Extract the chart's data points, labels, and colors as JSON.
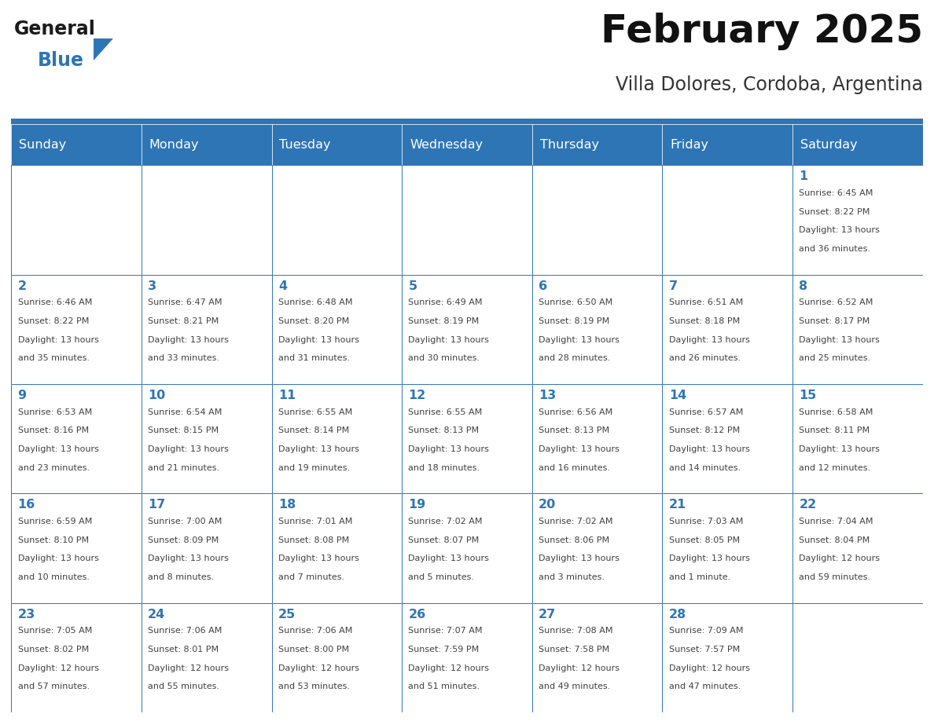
{
  "title": "February 2025",
  "subtitle": "Villa Dolores, Cordoba, Argentina",
  "header_bg": "#2E75B6",
  "header_text": "#FFFFFF",
  "cell_bg": "#FFFFFF",
  "cell_border": "#2E75B6",
  "day_number_color": "#2E75B6",
  "cell_text_color": "#404040",
  "separator_color": "#2E75B6",
  "days_of_week": [
    "Sunday",
    "Monday",
    "Tuesday",
    "Wednesday",
    "Thursday",
    "Friday",
    "Saturday"
  ],
  "logo_general_color": "#1a1a1a",
  "logo_blue_color": "#2E75B6",
  "calendar_data": [
    [
      null,
      null,
      null,
      null,
      null,
      null,
      {
        "day": "1",
        "sunrise": "6:45 AM",
        "sunset": "8:22 PM",
        "daylight": "13 hours",
        "daylight2": "and 36 minutes."
      }
    ],
    [
      {
        "day": "2",
        "sunrise": "6:46 AM",
        "sunset": "8:22 PM",
        "daylight": "13 hours",
        "daylight2": "and 35 minutes."
      },
      {
        "day": "3",
        "sunrise": "6:47 AM",
        "sunset": "8:21 PM",
        "daylight": "13 hours",
        "daylight2": "and 33 minutes."
      },
      {
        "day": "4",
        "sunrise": "6:48 AM",
        "sunset": "8:20 PM",
        "daylight": "13 hours",
        "daylight2": "and 31 minutes."
      },
      {
        "day": "5",
        "sunrise": "6:49 AM",
        "sunset": "8:19 PM",
        "daylight": "13 hours",
        "daylight2": "and 30 minutes."
      },
      {
        "day": "6",
        "sunrise": "6:50 AM",
        "sunset": "8:19 PM",
        "daylight": "13 hours",
        "daylight2": "and 28 minutes."
      },
      {
        "day": "7",
        "sunrise": "6:51 AM",
        "sunset": "8:18 PM",
        "daylight": "13 hours",
        "daylight2": "and 26 minutes."
      },
      {
        "day": "8",
        "sunrise": "6:52 AM",
        "sunset": "8:17 PM",
        "daylight": "13 hours",
        "daylight2": "and 25 minutes."
      }
    ],
    [
      {
        "day": "9",
        "sunrise": "6:53 AM",
        "sunset": "8:16 PM",
        "daylight": "13 hours",
        "daylight2": "and 23 minutes."
      },
      {
        "day": "10",
        "sunrise": "6:54 AM",
        "sunset": "8:15 PM",
        "daylight": "13 hours",
        "daylight2": "and 21 minutes."
      },
      {
        "day": "11",
        "sunrise": "6:55 AM",
        "sunset": "8:14 PM",
        "daylight": "13 hours",
        "daylight2": "and 19 minutes."
      },
      {
        "day": "12",
        "sunrise": "6:55 AM",
        "sunset": "8:13 PM",
        "daylight": "13 hours",
        "daylight2": "and 18 minutes."
      },
      {
        "day": "13",
        "sunrise": "6:56 AM",
        "sunset": "8:13 PM",
        "daylight": "13 hours",
        "daylight2": "and 16 minutes."
      },
      {
        "day": "14",
        "sunrise": "6:57 AM",
        "sunset": "8:12 PM",
        "daylight": "13 hours",
        "daylight2": "and 14 minutes."
      },
      {
        "day": "15",
        "sunrise": "6:58 AM",
        "sunset": "8:11 PM",
        "daylight": "13 hours",
        "daylight2": "and 12 minutes."
      }
    ],
    [
      {
        "day": "16",
        "sunrise": "6:59 AM",
        "sunset": "8:10 PM",
        "daylight": "13 hours",
        "daylight2": "and 10 minutes."
      },
      {
        "day": "17",
        "sunrise": "7:00 AM",
        "sunset": "8:09 PM",
        "daylight": "13 hours",
        "daylight2": "and 8 minutes."
      },
      {
        "day": "18",
        "sunrise": "7:01 AM",
        "sunset": "8:08 PM",
        "daylight": "13 hours",
        "daylight2": "and 7 minutes."
      },
      {
        "day": "19",
        "sunrise": "7:02 AM",
        "sunset": "8:07 PM",
        "daylight": "13 hours",
        "daylight2": "and 5 minutes."
      },
      {
        "day": "20",
        "sunrise": "7:02 AM",
        "sunset": "8:06 PM",
        "daylight": "13 hours",
        "daylight2": "and 3 minutes."
      },
      {
        "day": "21",
        "sunrise": "7:03 AM",
        "sunset": "8:05 PM",
        "daylight": "13 hours",
        "daylight2": "and 1 minute."
      },
      {
        "day": "22",
        "sunrise": "7:04 AM",
        "sunset": "8:04 PM",
        "daylight": "12 hours",
        "daylight2": "and 59 minutes."
      }
    ],
    [
      {
        "day": "23",
        "sunrise": "7:05 AM",
        "sunset": "8:02 PM",
        "daylight": "12 hours",
        "daylight2": "and 57 minutes."
      },
      {
        "day": "24",
        "sunrise": "7:06 AM",
        "sunset": "8:01 PM",
        "daylight": "12 hours",
        "daylight2": "and 55 minutes."
      },
      {
        "day": "25",
        "sunrise": "7:06 AM",
        "sunset": "8:00 PM",
        "daylight": "12 hours",
        "daylight2": "and 53 minutes."
      },
      {
        "day": "26",
        "sunrise": "7:07 AM",
        "sunset": "7:59 PM",
        "daylight": "12 hours",
        "daylight2": "and 51 minutes."
      },
      {
        "day": "27",
        "sunrise": "7:08 AM",
        "sunset": "7:58 PM",
        "daylight": "12 hours",
        "daylight2": "and 49 minutes."
      },
      {
        "day": "28",
        "sunrise": "7:09 AM",
        "sunset": "7:57 PM",
        "daylight": "12 hours",
        "daylight2": "and 47 minutes."
      },
      null
    ]
  ]
}
